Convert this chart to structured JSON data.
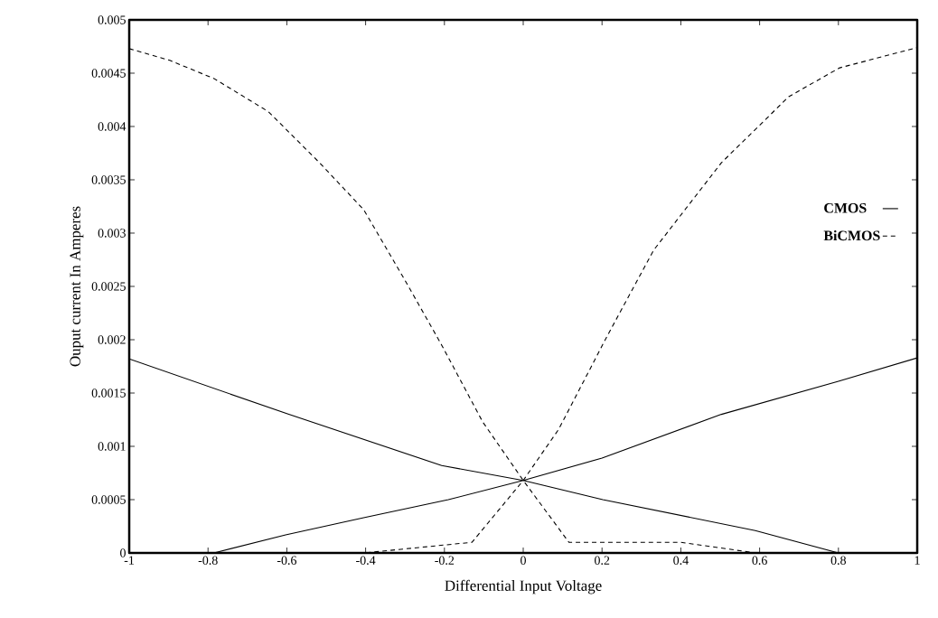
{
  "chart_data": {
    "type": "line",
    "xlabel": "Differential Input Voltage",
    "ylabel": "Ouput current In Amperes",
    "xlim": [
      -1,
      1
    ],
    "xticks": [
      -1,
      -0.8,
      -0.6,
      -0.4,
      -0.2,
      0,
      0.2,
      0.4,
      0.6,
      0.8,
      1
    ],
    "ylim": [
      0,
      0.005
    ],
    "yticks": [
      0,
      0.0005,
      0.001,
      0.0015,
      0.002,
      0.0025,
      0.003,
      0.0035,
      0.004,
      0.0045,
      0.005
    ],
    "legend": "right",
    "grid": false,
    "marker": "none",
    "series": [
      {
        "name": "CMOS",
        "color": "#000000",
        "line_style": "solid",
        "x": [
          -1,
          -0.595,
          -0.207,
          0,
          0.202,
          0.589,
          0.8,
          null,
          -0.785,
          -0.603,
          -0.405,
          -0.19,
          0,
          0.2,
          0.503,
          0.8,
          1
        ],
        "values": [
          0.00182,
          0.0013,
          0.00082,
          0.00068,
          0.0005,
          0.00021,
          0,
          null,
          0,
          0.00017,
          0.00033,
          0.0005,
          0.00068,
          0.00089,
          0.0013,
          0.00161,
          0.00183
        ]
      },
      {
        "name": "BiCMOS",
        "color": "#000000",
        "line_style": "dashed",
        "x": [
          -1,
          -0.897,
          -0.785,
          -0.647,
          -0.517,
          -0.405,
          -0.302,
          -0.207,
          -0.103,
          0,
          0.116,
          0.4,
          0.59,
          0.8,
          null,
          -0.46,
          -0.405,
          -0.13,
          0,
          0.09,
          0.211,
          0.331,
          0.503,
          0.674,
          0.803,
          1
        ],
        "values": [
          0.00473,
          0.00462,
          0.00445,
          0.00414,
          0.00366,
          0.00322,
          0.00257,
          0.00195,
          0.00123,
          0.00068,
          0.0001,
          0.0001,
          0,
          0,
          null,
          0,
          0,
          0.0001,
          0.00068,
          0.00116,
          0.00202,
          0.00284,
          0.00366,
          0.00428,
          0.00455,
          0.00474
        ]
      }
    ]
  }
}
